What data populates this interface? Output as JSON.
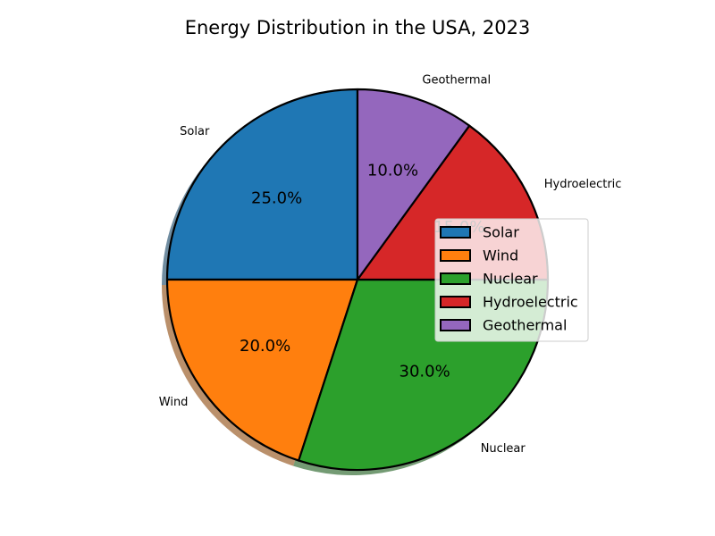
{
  "chart_data": {
    "type": "pie",
    "title": "Energy Distribution in the USA, 2023",
    "categories": [
      "Solar",
      "Wind",
      "Nuclear",
      "Hydroelectric",
      "Geothermal"
    ],
    "values": [
      25.0,
      20.0,
      30.0,
      15.0,
      10.0
    ],
    "percent_labels": [
      "25.0%",
      "20.0%",
      "30.0%",
      "15.0%",
      "10.0%"
    ],
    "colors": [
      "#1f77b4",
      "#ff7f0e",
      "#2ca02c",
      "#d62728",
      "#9467bd"
    ],
    "start_angle_deg": 90,
    "direction": "counterclockwise",
    "shadow": true,
    "legend": {
      "placement": "center-right",
      "entries": [
        "Solar",
        "Wind",
        "Nuclear",
        "Hydroelectric",
        "Geothermal"
      ]
    }
  }
}
